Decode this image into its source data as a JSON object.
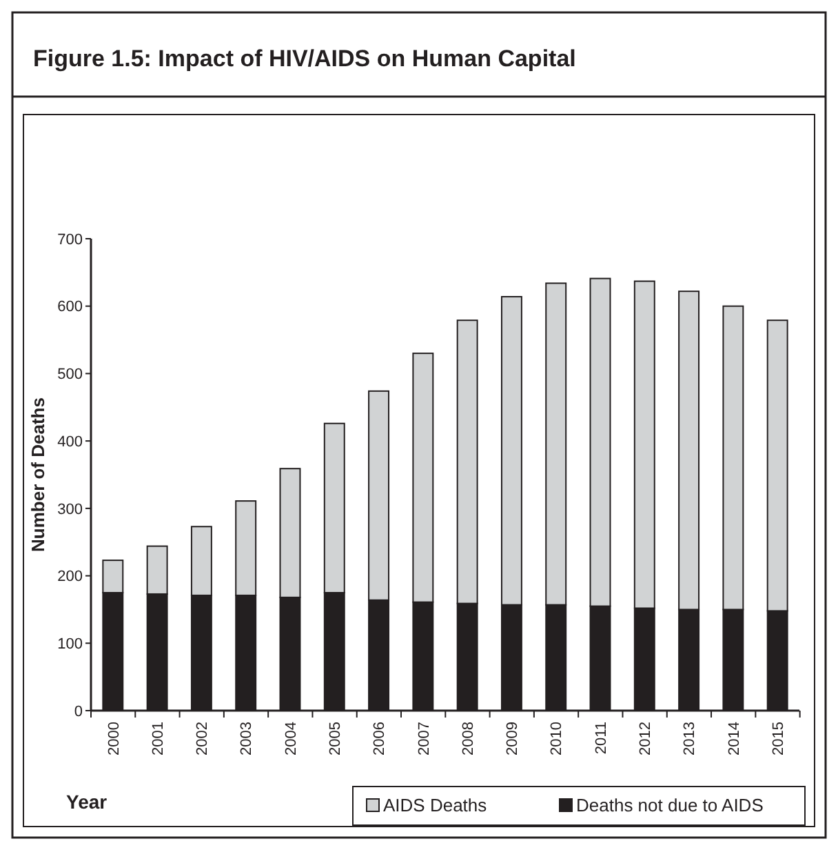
{
  "chart_data": {
    "type": "bar",
    "title": "Figure 1.5: Impact of HIV/AIDS on Human Capital",
    "xlabel": "Year",
    "ylabel": "Number of Deaths",
    "categories": [
      "2000",
      "2001",
      "2002",
      "2003",
      "2004",
      "2005",
      "2006",
      "2007",
      "2008",
      "2009",
      "2010",
      "2011",
      "2012",
      "2013",
      "2014",
      "2015"
    ],
    "stacked": true,
    "series": [
      {
        "name": "Deaths not due to AIDS",
        "color": "#231f20",
        "values": [
          175,
          173,
          171,
          171,
          168,
          175,
          164,
          161,
          159,
          157,
          157,
          155,
          152,
          150,
          150,
          148
        ]
      },
      {
        "name": "AIDS Deaths",
        "color": "#d1d3d4",
        "values": [
          48,
          71,
          102,
          140,
          191,
          251,
          310,
          369,
          420,
          457,
          477,
          486,
          485,
          472,
          450,
          431
        ]
      }
    ],
    "ylim": [
      0,
      700
    ],
    "yticks": [
      0,
      100,
      200,
      300,
      400,
      500,
      600,
      700
    ],
    "grid": false,
    "legend": "bottom right"
  }
}
